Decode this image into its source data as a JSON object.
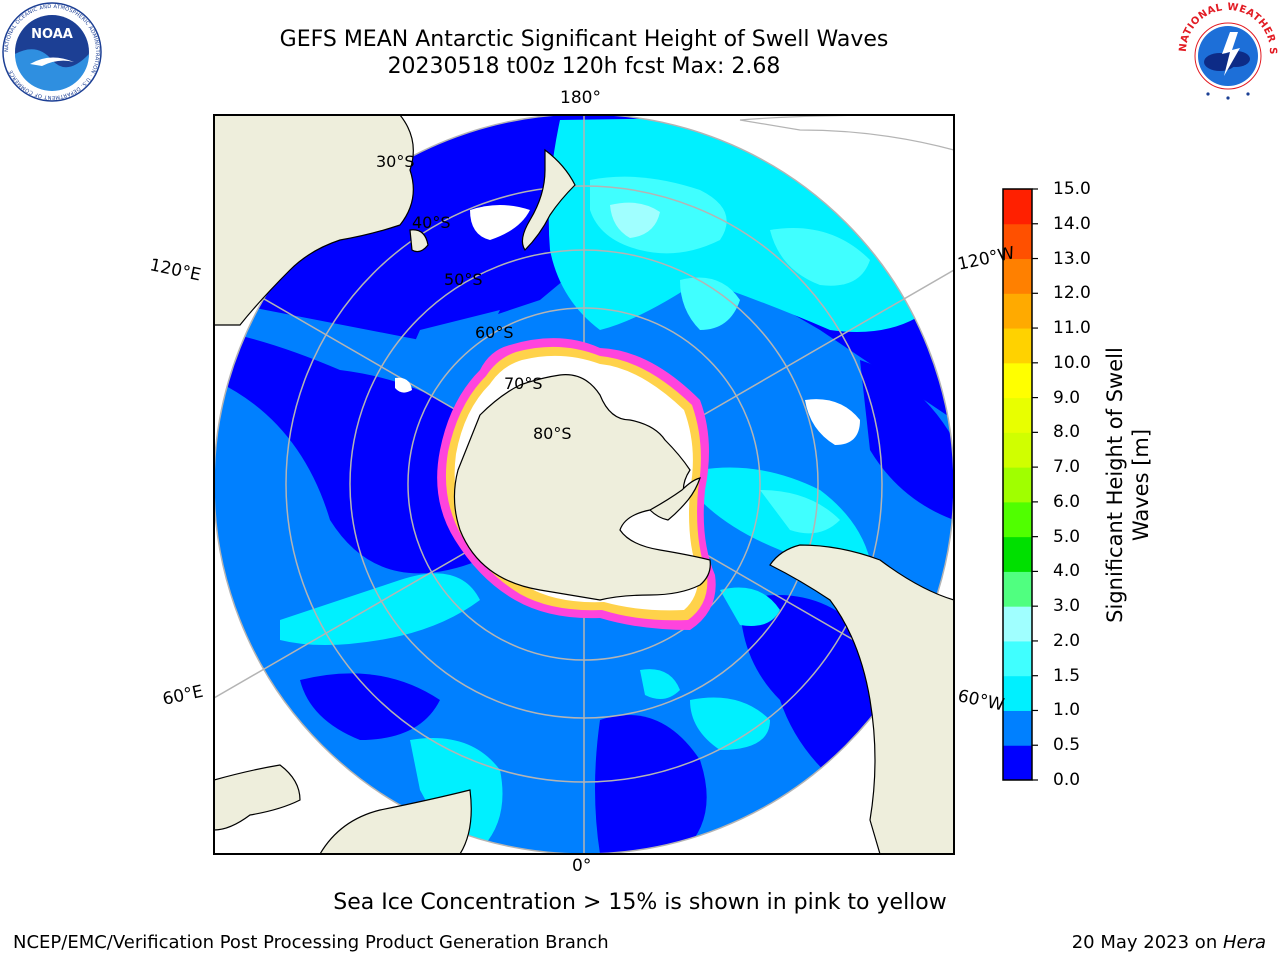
{
  "header": {
    "title_line1": "GEFS MEAN Antarctic Significant Height of Swell Waves",
    "title_line2": "20230518 t00z 120h fcst   Max: 2.68",
    "noaa_logo_text": "NOAA",
    "noaa_ring_text": "NATIONAL OCEANIC AND ATMOSPHERIC ADMINISTRATION · U.S. DEPARTMENT OF COMMERCE",
    "nws_ring_text": "NATIONAL WEATHER SERVICE"
  },
  "map": {
    "projection": "south-polar-stereographic",
    "longitude_labels": {
      "top": "180°",
      "bottom": "0°",
      "upper_left": "120°E",
      "upper_right": "120°W",
      "lower_left": "60°E",
      "lower_right": "60°W"
    },
    "latitude_labels": [
      "30°S",
      "40°S",
      "50°S",
      "60°S",
      "70°S",
      "80°S"
    ],
    "colors": {
      "land": "#eeeedc",
      "grid": "#b4b4b4",
      "ice_edge": "#ff44dd",
      "ice_inner": "#ffd24a"
    }
  },
  "colorbar": {
    "label": "Significant Height of Swell Waves [m]",
    "ticks": [
      "0.0",
      "0.5",
      "1.0",
      "1.5",
      "2.0",
      "3.0",
      "4.0",
      "5.0",
      "6.0",
      "7.0",
      "8.0",
      "9.0",
      "10.0",
      "11.0",
      "12.0",
      "13.0",
      "14.0",
      "15.0"
    ],
    "colors": [
      "#0000ff",
      "#0080ff",
      "#00f0ff",
      "#40ffff",
      "#a0ffff",
      "#50ff80",
      "#00e000",
      "#50ff00",
      "#a0ff00",
      "#d0ff00",
      "#e8ff00",
      "#ffff00",
      "#ffd200",
      "#ffaa00",
      "#ff8000",
      "#ff5000",
      "#ff2000"
    ]
  },
  "footer": {
    "note": "Sea Ice Concentration > 15% is shown in pink to yellow",
    "left": "NCEP/EMC/Verification Post Processing Product Generation Branch",
    "right_date": "20 May 2023 on ",
    "right_host": "Hera"
  }
}
